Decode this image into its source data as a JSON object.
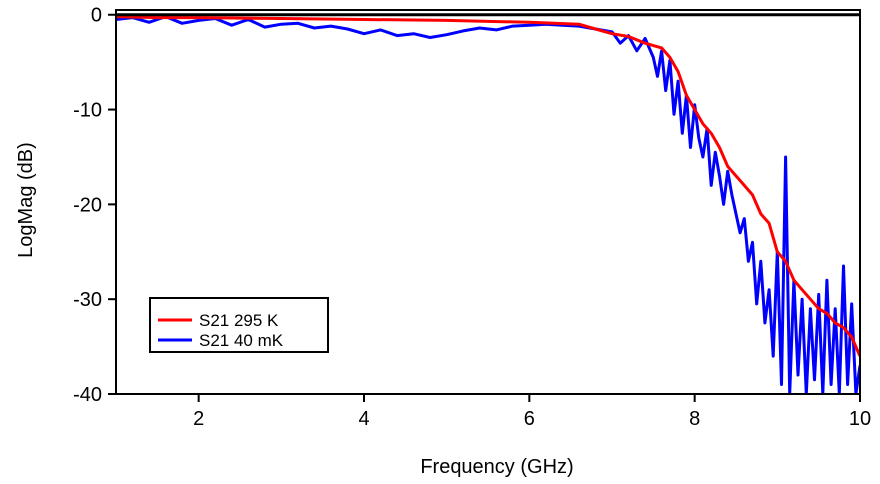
{
  "chart_data": {
    "type": "line",
    "title": "",
    "xlabel": "Frequency (GHz)",
    "ylabel": "LogMag (dB)",
    "xlim": [
      1,
      10
    ],
    "ylim": [
      -40,
      0.5
    ],
    "xticks": [
      2,
      4,
      6,
      8,
      10
    ],
    "yticks": [
      0,
      -10,
      -20,
      -30,
      -40
    ],
    "xtick_labels": [
      "2",
      "4",
      "6",
      "8",
      "10"
    ],
    "ytick_labels": [
      "0",
      "-10",
      "-20",
      "-30",
      "-40"
    ],
    "grid": false,
    "legend_position": "bottom-left",
    "reference_line": {
      "y": 0,
      "color": "#000000"
    },
    "series": [
      {
        "name": "S21 295 K",
        "color": "#ff0000",
        "x": [
          1.0,
          1.5,
          2.0,
          3.0,
          4.0,
          5.0,
          6.0,
          6.6,
          6.8,
          7.0,
          7.2,
          7.4,
          7.6,
          7.7,
          7.8,
          7.9,
          8.0,
          8.1,
          8.2,
          8.3,
          8.4,
          8.5,
          8.6,
          8.7,
          8.8,
          8.9,
          9.0,
          9.1,
          9.2,
          9.3,
          9.4,
          9.5,
          9.6,
          9.7,
          9.8,
          9.9,
          10.0
        ],
        "y": [
          -0.2,
          -0.3,
          -0.3,
          -0.4,
          -0.5,
          -0.6,
          -0.8,
          -1.0,
          -1.5,
          -2.0,
          -2.3,
          -3.0,
          -3.5,
          -4.5,
          -6.0,
          -8.5,
          -10.0,
          -11.5,
          -12.5,
          -14.0,
          -16.0,
          -17.0,
          -18.0,
          -19.0,
          -21.0,
          -22.0,
          -25.0,
          -26.0,
          -28.0,
          -29.0,
          -30.0,
          -31.0,
          -31.5,
          -32.5,
          -33.0,
          -34.0,
          -36.0
        ]
      },
      {
        "name": "S21 40 mK",
        "color": "#0000ff",
        "x": [
          1.0,
          1.2,
          1.4,
          1.6,
          1.8,
          2.0,
          2.2,
          2.4,
          2.6,
          2.8,
          3.0,
          3.2,
          3.4,
          3.6,
          3.8,
          4.0,
          4.2,
          4.4,
          4.6,
          4.8,
          5.0,
          5.2,
          5.4,
          5.6,
          5.8,
          6.0,
          6.2,
          6.4,
          6.6,
          6.8,
          7.0,
          7.1,
          7.2,
          7.3,
          7.4,
          7.5,
          7.55,
          7.6,
          7.65,
          7.7,
          7.75,
          7.8,
          7.85,
          7.9,
          7.95,
          8.0,
          8.05,
          8.1,
          8.15,
          8.2,
          8.25,
          8.3,
          8.35,
          8.4,
          8.45,
          8.5,
          8.55,
          8.6,
          8.65,
          8.7,
          8.75,
          8.8,
          8.85,
          8.9,
          8.95,
          9.0,
          9.05,
          9.1,
          9.15,
          9.2,
          9.25,
          9.3,
          9.35,
          9.4,
          9.45,
          9.5,
          9.55,
          9.6,
          9.65,
          9.7,
          9.75,
          9.8,
          9.85,
          9.9,
          9.95,
          10.0
        ],
        "y": [
          -0.5,
          -0.3,
          -0.8,
          -0.2,
          -0.9,
          -0.6,
          -0.4,
          -1.1,
          -0.5,
          -1.3,
          -1.0,
          -0.9,
          -1.4,
          -1.2,
          -1.5,
          -2.0,
          -1.6,
          -2.2,
          -2.0,
          -2.4,
          -2.1,
          -1.7,
          -1.4,
          -1.6,
          -1.2,
          -1.1,
          -1.0,
          -1.1,
          -1.2,
          -1.5,
          -1.8,
          -3.0,
          -2.2,
          -3.8,
          -2.5,
          -4.5,
          -6.5,
          -3.8,
          -8.0,
          -4.8,
          -10.5,
          -7.0,
          -12.5,
          -8.5,
          -14.0,
          -9.5,
          -13.0,
          -15.0,
          -12.0,
          -18.0,
          -14.5,
          -17.0,
          -20.0,
          -16.5,
          -19.0,
          -21.0,
          -23.0,
          -21.5,
          -26.0,
          -24.0,
          -30.5,
          -26.0,
          -32.5,
          -29.0,
          -36.0,
          -25.0,
          -39.0,
          -15.0,
          -40.0,
          -28.0,
          -38.0,
          -30.0,
          -40.0,
          -31.0,
          -38.5,
          -29.5,
          -40.0,
          -28.0,
          -39.0,
          -31.0,
          -40.0,
          -26.5,
          -39.0,
          -30.5,
          -40.0,
          -37.0
        ]
      }
    ]
  }
}
